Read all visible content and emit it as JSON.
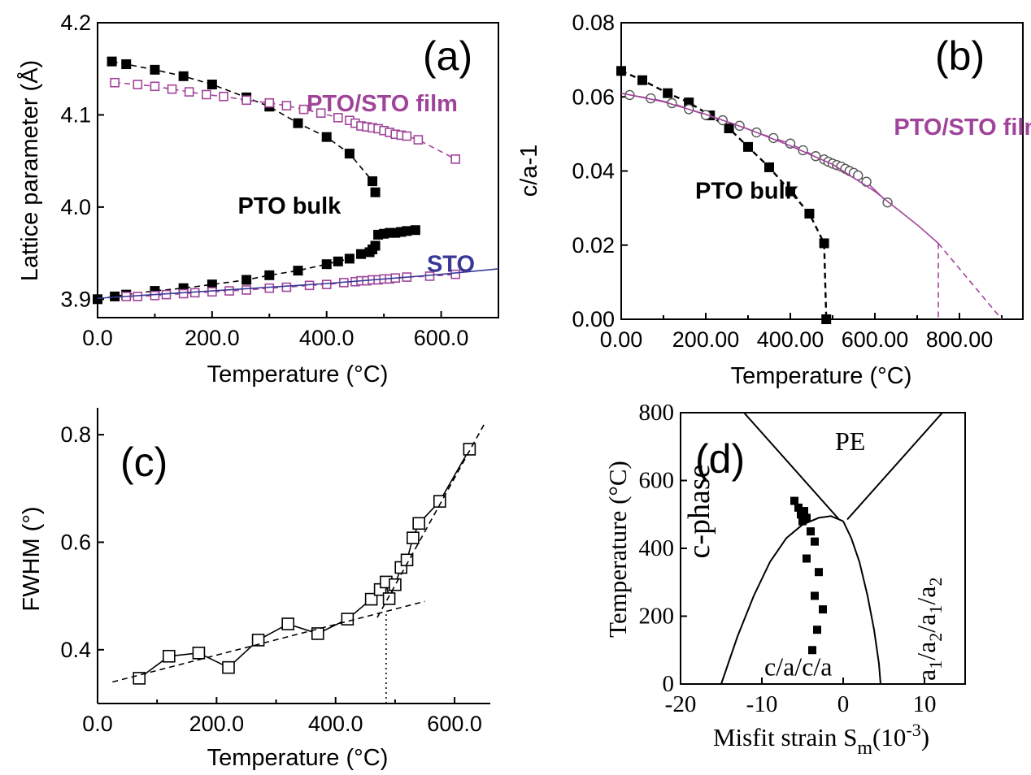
{
  "colors": {
    "black": "#000000",
    "magenta": "#a0449a",
    "navy": "#3a3896"
  },
  "chart_data": [
    {
      "id": "a",
      "type": "scatter",
      "panel_label": "(a)",
      "xlabel": "Temperature (°C)",
      "ylabel": "Lattice parameter (Å)",
      "xlim": [
        0,
        700
      ],
      "ylim": [
        3.88,
        4.2
      ],
      "xticks": [
        0,
        200,
        400,
        600
      ],
      "yticks": [
        3.9,
        4.0,
        4.1,
        4.2
      ],
      "series": [
        {
          "key": "bulk_c",
          "marker": "filled-square",
          "color": "#000000",
          "dash": true,
          "x": [
            25,
            50,
            100,
            150,
            200,
            260,
            300,
            350,
            400,
            440,
            480,
            485
          ],
          "y": [
            4.158,
            4.155,
            4.149,
            4.142,
            4.133,
            4.119,
            4.109,
            4.091,
            4.076,
            4.058,
            4.028,
            4.016
          ]
        },
        {
          "key": "film_c",
          "marker": "open-square",
          "color": "#a0449a",
          "dash": true,
          "x": [
            30,
            70,
            100,
            130,
            160,
            190,
            220,
            260,
            300,
            330,
            360,
            390,
            420,
            440,
            450,
            460,
            470,
            480,
            490,
            500,
            510,
            520,
            530,
            540,
            560,
            625
          ],
          "y": [
            4.135,
            4.133,
            4.131,
            4.128,
            4.125,
            4.122,
            4.12,
            4.116,
            4.113,
            4.11,
            4.106,
            4.102,
            4.097,
            4.094,
            4.091,
            4.088,
            4.087,
            4.086,
            4.085,
            4.083,
            4.081,
            4.079,
            4.078,
            4.077,
            4.073,
            4.052
          ]
        },
        {
          "key": "bulk_a",
          "marker": "filled-square",
          "color": "#000000",
          "dash": true,
          "x": [
            0,
            30,
            50,
            100,
            150,
            200,
            260,
            300,
            350,
            400,
            420,
            440,
            460,
            475,
            480,
            485,
            490,
            500,
            510,
            520,
            530,
            540,
            555
          ],
          "y": [
            3.9,
            3.903,
            3.905,
            3.909,
            3.912,
            3.916,
            3.921,
            3.926,
            3.931,
            3.938,
            3.941,
            3.944,
            3.949,
            3.951,
            3.954,
            3.958,
            3.97,
            3.971,
            3.972,
            3.972,
            3.973,
            3.974,
            3.975
          ]
        },
        {
          "key": "film_a",
          "marker": "open-square",
          "color": "#a0449a",
          "dash": true,
          "x": [
            50,
            70,
            100,
            120,
            150,
            170,
            200,
            230,
            260,
            300,
            330,
            370,
            400,
            430,
            450,
            460,
            470,
            480,
            490,
            500,
            510,
            520,
            540,
            580,
            625
          ],
          "y": [
            3.903,
            3.903,
            3.904,
            3.905,
            3.906,
            3.907,
            3.908,
            3.909,
            3.91,
            3.912,
            3.913,
            3.915,
            3.916,
            3.918,
            3.919,
            3.92,
            3.92,
            3.921,
            3.921,
            3.922,
            3.922,
            3.923,
            3.924,
            3.925,
            3.927
          ]
        },
        {
          "key": "sto",
          "marker": "none",
          "color": "#3a3896",
          "dash": false,
          "x": [
            0,
            100,
            200,
            300,
            400,
            500,
            600,
            700
          ],
          "y": [
            3.901,
            3.905,
            3.909,
            3.913,
            3.917,
            3.922,
            3.927,
            3.933
          ]
        }
      ],
      "annotations": [
        {
          "text": "PTO/STO film",
          "color": "#a0449a",
          "x": 365,
          "y": 4.104
        },
        {
          "text": "PTO bulk",
          "color": "#000000",
          "x": 245,
          "y": 3.993
        },
        {
          "text": "STO",
          "color": "#3a3896",
          "x": 575,
          "y": 3.93
        }
      ]
    },
    {
      "id": "b",
      "type": "scatter",
      "panel_label": "(b)",
      "xlabel": "Temperature (°C)",
      "ylabel": "c/a-1",
      "xlim": [
        0,
        950
      ],
      "ylim": [
        0,
        0.08
      ],
      "xticks": [
        0,
        200,
        400,
        600,
        800
      ],
      "yticks": [
        0.0,
        0.02,
        0.04,
        0.06,
        0.08
      ],
      "series": [
        {
          "key": "bulk",
          "marker": "filled-square",
          "color": "#000000",
          "dash": true,
          "x": [
            0,
            50,
            110,
            160,
            210,
            255,
            300,
            350,
            400,
            445,
            480,
            485
          ],
          "y": [
            0.067,
            0.0645,
            0.061,
            0.0585,
            0.055,
            0.0515,
            0.0465,
            0.041,
            0.0345,
            0.0285,
            0.0205,
            0.0
          ]
        },
        {
          "key": "film",
          "marker": "open-circle",
          "color": "#a0449a",
          "dash": false,
          "x": [
            20,
            70,
            120,
            160,
            200,
            240,
            280,
            320,
            360,
            400,
            430,
            460,
            480,
            490,
            500,
            510,
            520,
            530,
            540,
            550,
            560,
            580,
            630
          ],
          "y": [
            0.0605,
            0.0596,
            0.0583,
            0.0567,
            0.0551,
            0.0537,
            0.0522,
            0.0504,
            0.0489,
            0.0474,
            0.0456,
            0.044,
            0.0431,
            0.0425,
            0.042,
            0.0416,
            0.0412,
            0.0406,
            0.04,
            0.0395,
            0.0388,
            0.0371,
            0.0315
          ]
        },
        {
          "key": "film_fit",
          "marker": "none",
          "color": "#a0449a",
          "dash": false,
          "x": [
            0,
            100,
            200,
            300,
            400,
            500,
            600,
            700,
            750
          ],
          "y": [
            0.061,
            0.0587,
            0.0553,
            0.0513,
            0.0468,
            0.0418,
            0.0345,
            0.0255,
            0.0205
          ]
        },
        {
          "key": "film_extrap",
          "marker": "none",
          "color": "#a0449a",
          "dash": true,
          "x": [
            750,
            900
          ],
          "y": [
            0.0205,
            0.0
          ]
        },
        {
          "key": "film_tc",
          "marker": "none",
          "color": "#a0449a",
          "dash": true,
          "x": [
            750,
            750
          ],
          "y": [
            0.0205,
            0.0
          ]
        }
      ],
      "annotations": [
        {
          "text": "PTO/STO film",
          "color": "#a0449a",
          "x": 645,
          "y": 0.0498
        },
        {
          "text": "PTO bulk",
          "color": "#000000",
          "x": 175,
          "y": 0.0325
        }
      ]
    },
    {
      "id": "c",
      "type": "scatter",
      "panel_label": "(c)",
      "xlabel": "Temperature (°C)",
      "ylabel": "FWHM (°)",
      "xlim": [
        0,
        660
      ],
      "ylim": [
        0.3,
        0.85
      ],
      "xticks": [
        0,
        200,
        400,
        600
      ],
      "yticks": [
        0.4,
        0.6,
        0.8
      ],
      "series": [
        {
          "key": "fwhm",
          "marker": "open-square",
          "color": "#000000",
          "dash": false,
          "x": [
            70,
            120,
            170,
            220,
            270,
            320,
            370,
            420,
            460,
            475,
            485,
            490,
            500,
            510,
            520,
            530,
            540,
            575,
            625
          ],
          "y": [
            0.347,
            0.388,
            0.394,
            0.367,
            0.418,
            0.448,
            0.43,
            0.457,
            0.494,
            0.512,
            0.526,
            0.495,
            0.521,
            0.553,
            0.567,
            0.608,
            0.635,
            0.676,
            0.773
          ]
        },
        {
          "key": "fit_low",
          "marker": "none",
          "color": "#000000",
          "dash": true,
          "x": [
            25,
            550
          ],
          "y": [
            0.34,
            0.49
          ]
        },
        {
          "key": "fit_high",
          "marker": "none",
          "color": "#000000",
          "dash": true,
          "x": [
            470,
            650
          ],
          "y": [
            0.46,
            0.82
          ]
        },
        {
          "key": "tc_marker",
          "marker": "none",
          "color": "#000000",
          "dash": "dotted",
          "x": [
            485,
            485
          ],
          "y": [
            0.3,
            0.47
          ]
        }
      ]
    },
    {
      "id": "d",
      "type": "line",
      "panel_label": "(d)",
      "xlabel": "Misfit strain S",
      "xlabel_sub": "m",
      "xlabel_tail": "(10",
      "xlabel_sup": "-3",
      "xlabel_close": ")",
      "ylabel": "Temperature (°C)",
      "xlim": [
        -20,
        15
      ],
      "ylim": [
        0,
        800
      ],
      "xticks": [
        -20,
        -10,
        0,
        10
      ],
      "yticks": [
        0,
        200,
        400,
        600,
        800
      ],
      "series": [
        {
          "key": "pe_left",
          "marker": "none",
          "color": "#000000",
          "x": [
            -12.2,
            -0.5
          ],
          "y": [
            800,
            485
          ]
        },
        {
          "key": "pe_right",
          "marker": "none",
          "color": "#000000",
          "x": [
            0.5,
            12.2
          ],
          "y": [
            485,
            800
          ]
        },
        {
          "key": "c_boundary",
          "marker": "none",
          "color": "#000000",
          "x": [
            -15,
            -13,
            -11,
            -9,
            -7,
            -5,
            -3,
            -1.5,
            0
          ],
          "y": [
            0,
            140,
            260,
            360,
            430,
            470,
            490,
            495,
            480
          ]
        },
        {
          "key": "r_boundary",
          "marker": "none",
          "color": "#000000",
          "x": [
            0,
            1,
            2,
            3,
            3.8,
            4.4,
            4.6
          ],
          "y": [
            480,
            430,
            360,
            260,
            160,
            60,
            0
          ]
        },
        {
          "key": "data",
          "marker": "filled-square",
          "color": "#000000",
          "x": [
            -6,
            -5.5,
            -4.8,
            -5.2,
            -4.5,
            -5,
            -4,
            -3.5,
            -4.5,
            -3,
            -3.5,
            -2.5,
            -3.2,
            -3.8
          ],
          "y": [
            540,
            520,
            510,
            500,
            490,
            480,
            450,
            420,
            370,
            330,
            260,
            220,
            160,
            100
          ]
        }
      ],
      "annotations": [
        {
          "text": "PE",
          "x": -1,
          "y": 690,
          "rotate": 0
        },
        {
          "text": "c-phase",
          "x": -16.5,
          "y": 370,
          "rotate": -90
        },
        {
          "text": "c/a/c/a",
          "x": -9.7,
          "y": 25,
          "rotate": 0
        },
        {
          "text": "a",
          "x": 11,
          "y": 60,
          "rotate": -90
        }
      ],
      "rotated_label_parts": [
        {
          "text": "a",
          "sub": false
        },
        {
          "text": "1",
          "sub": true
        },
        {
          "text": "/a",
          "sub": false
        },
        {
          "text": "2",
          "sub": true
        },
        {
          "text": "/a",
          "sub": false
        },
        {
          "text": "1",
          "sub": true
        },
        {
          "text": "/a",
          "sub": false
        },
        {
          "text": "2",
          "sub": true
        }
      ]
    }
  ]
}
